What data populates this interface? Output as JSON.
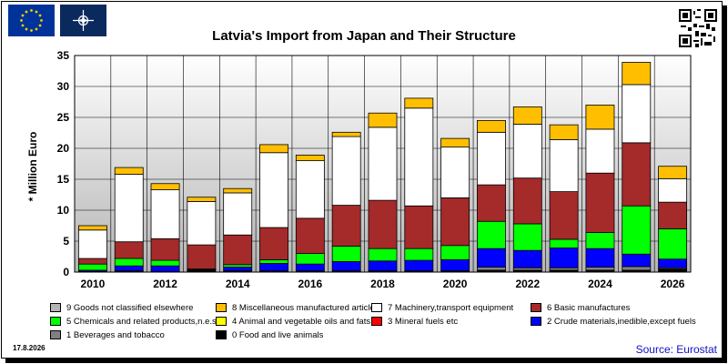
{
  "title": "Latvia's Import from Japan and Their Structure",
  "date": "17.8.2026",
  "source": "Source: Eurostat",
  "icons": [
    "eu-flag-icon",
    "nato-flag-icon",
    "qr-code-icon"
  ],
  "chart_data": {
    "type": "bar",
    "stacked": true,
    "ylabel": "* Million Euro",
    "ylim": [
      0,
      35
    ],
    "yticks": [
      0,
      5,
      10,
      15,
      20,
      25,
      30,
      35
    ],
    "grid": true,
    "legend_position": "bottom",
    "categories": [
      "2010",
      "2011",
      "2012",
      "2013",
      "2014",
      "2015",
      "2016",
      "2017",
      "2018",
      "2019",
      "2020",
      "2021",
      "2022",
      "2023",
      "2024",
      "2025",
      "2026"
    ],
    "xtick_labels": [
      "2010",
      "",
      "2012",
      "",
      "2014",
      "",
      "2016",
      "",
      "2018",
      "",
      "2020",
      "",
      "2022",
      "",
      "2024",
      "",
      "2026"
    ],
    "series": [
      {
        "name": "0 Food and live animals",
        "color": "#000000",
        "values": [
          0.1,
          0.2,
          0.1,
          0.3,
          0.2,
          0.2,
          0.2,
          0.2,
          0.2,
          0.2,
          0.2,
          0.3,
          0.3,
          0.3,
          0.3,
          0.3,
          0.5
        ]
      },
      {
        "name": "1 Beverages and tobacco",
        "color": "#808080",
        "values": [
          0,
          0,
          0,
          0,
          0,
          0,
          0,
          0,
          0,
          0,
          0,
          0.5,
          0.4,
          0.4,
          0.5,
          0.6,
          0.2
        ]
      },
      {
        "name": "2 Crude materials,inedible,except fuels",
        "color": "#0000ff",
        "values": [
          0.2,
          0.8,
          0.9,
          0.1,
          0.6,
          1.2,
          1.1,
          1.5,
          1.6,
          1.7,
          1.8,
          3.0,
          2.8,
          3.2,
          3.0,
          2.0,
          1.4
        ]
      },
      {
        "name": "3 Mineral fuels etc",
        "color": "#ff0000",
        "values": [
          0,
          0,
          0,
          0,
          0,
          0,
          0,
          0,
          0,
          0,
          0,
          0,
          0,
          0,
          0,
          0,
          0
        ]
      },
      {
        "name": "4 Animal and vegetable oils and fats",
        "color": "#ffff00",
        "values": [
          0,
          0,
          0,
          0,
          0,
          0,
          0,
          0,
          0,
          0,
          0,
          0,
          0,
          0,
          0,
          0,
          0
        ]
      },
      {
        "name": "5 Chemicals and related products,n.e.s.",
        "color": "#00ff00",
        "values": [
          1.0,
          1.2,
          0.9,
          0.1,
          0.4,
          0.6,
          1.7,
          2.5,
          2.0,
          1.9,
          2.3,
          4.4,
          4.3,
          1.4,
          2.6,
          7.8,
          4.9
        ]
      },
      {
        "name": "6 Basic manufactures",
        "color": "#a52a2a",
        "values": [
          0.9,
          2.7,
          3.5,
          3.9,
          4.8,
          5.2,
          5.7,
          6.6,
          7.8,
          6.9,
          7.7,
          5.9,
          7.4,
          7.7,
          9.6,
          10.2,
          4.3
        ]
      },
      {
        "name": "7 Machinery,transport equipment",
        "color": "#ffffff",
        "values": [
          4.6,
          10.9,
          7.9,
          7.0,
          6.8,
          12.1,
          9.3,
          11.1,
          11.8,
          15.8,
          8.2,
          8.5,
          8.7,
          8.4,
          7.1,
          9.4,
          3.8
        ]
      },
      {
        "name": "8 Miscellaneous manufactured articles",
        "color": "#ffbf00",
        "values": [
          0.7,
          1.1,
          1.0,
          0.7,
          0.7,
          1.3,
          0.9,
          0.7,
          2.3,
          1.6,
          1.4,
          1.9,
          2.8,
          2.4,
          3.9,
          3.6,
          2.0
        ]
      },
      {
        "name": "9 Goods not classified elsewhere",
        "color": "#b4b4b4",
        "values": [
          0,
          0,
          0,
          0,
          0,
          0,
          0,
          0,
          0,
          0,
          0,
          0,
          0,
          0,
          0,
          0,
          0
        ]
      }
    ]
  }
}
